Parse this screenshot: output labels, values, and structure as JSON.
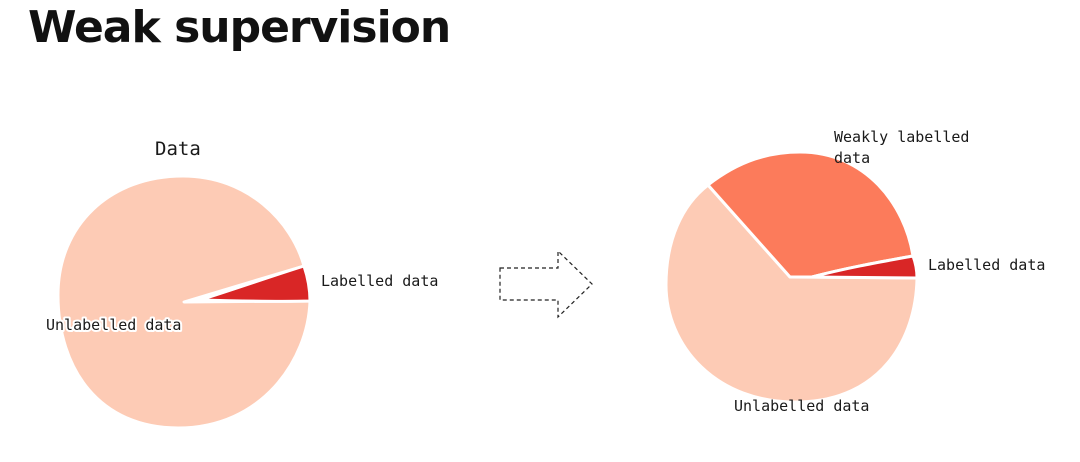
{
  "title": "Weak supervision",
  "colors": {
    "unlabelled": "#fdcbb5",
    "weakly_labelled": "#fc7b5b",
    "labelled": "#d92626",
    "divider": "#ffffff"
  },
  "before": {
    "title": "Data",
    "slices": [
      {
        "name": "unlabelled",
        "label": "Unlabelled data",
        "share": 0.96
      },
      {
        "name": "labelled",
        "label": "Labelled data",
        "share": 0.04
      }
    ]
  },
  "after": {
    "title_lines": [
      "Weakly labelled",
      "data"
    ],
    "slices": [
      {
        "name": "unlabelled",
        "label": "Unlabelled data",
        "share": 0.63
      },
      {
        "name": "weakly_labelled",
        "label": "Weakly labelled data",
        "share": 0.33
      },
      {
        "name": "labelled",
        "label": "Labelled data",
        "share": 0.04
      }
    ]
  },
  "arrow": {
    "style": "dashed",
    "direction": "right"
  }
}
